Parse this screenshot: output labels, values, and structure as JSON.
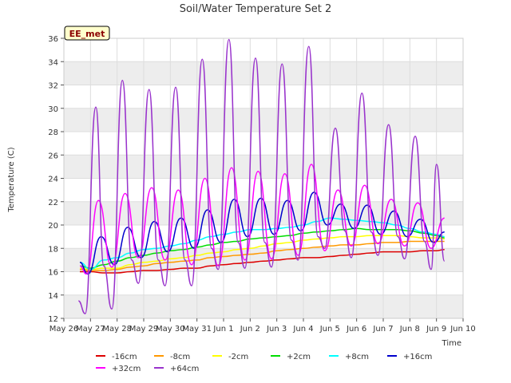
{
  "chart_data": {
    "type": "line",
    "title": "Soil/Water Temperature Set 2",
    "xlabel": "Time",
    "ylabel": "Temperature (C)",
    "site_label": "EE_met",
    "ylim": [
      12,
      36
    ],
    "xlim": [
      0,
      15
    ],
    "yticks": [
      12,
      14,
      16,
      18,
      20,
      22,
      24,
      26,
      28,
      30,
      32,
      34,
      36
    ],
    "xticks": [
      {
        "pos": 0,
        "label": "May 26"
      },
      {
        "pos": 1,
        "label": "May 27"
      },
      {
        "pos": 2,
        "label": "May 28"
      },
      {
        "pos": 3,
        "label": "May 29"
      },
      {
        "pos": 4,
        "label": "May 30"
      },
      {
        "pos": 5,
        "label": "May 31"
      },
      {
        "pos": 6,
        "label": "Jun 1"
      },
      {
        "pos": 7,
        "label": "Jun 2"
      },
      {
        "pos": 8,
        "label": "Jun 3"
      },
      {
        "pos": 9,
        "label": "Jun 4"
      },
      {
        "pos": 10,
        "label": "Jun 5"
      },
      {
        "pos": 11,
        "label": "Jun 6"
      },
      {
        "pos": 12,
        "label": "Jun 7"
      },
      {
        "pos": 13,
        "label": "Jun 8"
      },
      {
        "pos": 14,
        "label": "Jun 9"
      },
      {
        "pos": 15,
        "label": "Jun 10"
      }
    ],
    "grid": true,
    "legend_position": "bottom",
    "series": [
      {
        "name": "-16cm",
        "color": "#dd0000",
        "x": [
          0.6,
          1.0,
          1.5,
          2.0,
          2.5,
          3.0,
          3.5,
          4.0,
          4.5,
          5.0,
          5.5,
          6.0,
          6.5,
          7.0,
          7.5,
          8.0,
          8.5,
          9.0,
          9.5,
          10.0,
          10.5,
          11.0,
          11.5,
          12.0,
          12.5,
          13.0,
          13.5,
          14.0,
          14.3
        ],
        "y": [
          16.0,
          16.0,
          15.9,
          15.9,
          16.0,
          16.1,
          16.1,
          16.2,
          16.3,
          16.3,
          16.5,
          16.6,
          16.7,
          16.8,
          16.9,
          17.0,
          17.1,
          17.2,
          17.2,
          17.3,
          17.4,
          17.5,
          17.6,
          17.7,
          17.7,
          17.7,
          17.8,
          17.8,
          17.9
        ]
      },
      {
        "name": "-8cm",
        "color": "#ff9900",
        "x": [
          0.6,
          1.0,
          1.5,
          2.0,
          2.5,
          3.0,
          3.5,
          4.0,
          4.5,
          5.0,
          5.5,
          6.0,
          6.5,
          7.0,
          7.5,
          8.0,
          8.5,
          9.0,
          9.5,
          10.0,
          10.5,
          11.0,
          11.5,
          12.0,
          12.5,
          13.0,
          13.5,
          14.0,
          14.3
        ],
        "y": [
          16.2,
          16.1,
          16.1,
          16.2,
          16.4,
          16.5,
          16.7,
          16.8,
          16.9,
          17.0,
          17.2,
          17.3,
          17.4,
          17.5,
          17.6,
          17.8,
          17.9,
          18.0,
          18.1,
          18.2,
          18.3,
          18.3,
          18.4,
          18.5,
          18.5,
          18.6,
          18.6,
          18.6,
          18.6
        ]
      },
      {
        "name": "-2cm",
        "color": "#ffff00",
        "x": [
          0.6,
          1.0,
          1.5,
          2.0,
          2.5,
          3.0,
          3.5,
          4.0,
          4.5,
          5.0,
          5.5,
          6.0,
          6.5,
          7.0,
          7.5,
          8.0,
          8.5,
          9.0,
          9.5,
          10.0,
          10.5,
          11.0,
          11.5,
          12.0,
          12.5,
          13.0,
          13.5,
          14.0,
          14.3
        ],
        "y": [
          16.3,
          16.2,
          16.3,
          16.3,
          16.6,
          16.8,
          16.9,
          17.1,
          17.2,
          17.4,
          17.6,
          17.7,
          17.9,
          18.0,
          18.2,
          18.4,
          18.5,
          18.7,
          18.8,
          18.9,
          19.0,
          19.0,
          19.1,
          19.1,
          19.1,
          19.0,
          18.9,
          18.9,
          18.8
        ]
      },
      {
        "name": "+2cm",
        "color": "#00dd00",
        "x": [
          0.6,
          1.0,
          1.5,
          2.0,
          2.5,
          3.0,
          3.5,
          4.0,
          4.5,
          5.0,
          5.5,
          6.0,
          6.5,
          7.0,
          7.5,
          8.0,
          8.5,
          9.0,
          9.5,
          10.0,
          10.5,
          11.0,
          11.5,
          12.0,
          12.5,
          13.0,
          13.5,
          14.0,
          14.3
        ],
        "y": [
          16.5,
          16.3,
          16.6,
          16.9,
          17.2,
          17.4,
          17.6,
          17.8,
          17.9,
          18.1,
          18.3,
          18.5,
          18.6,
          18.8,
          18.9,
          19.0,
          19.1,
          19.3,
          19.4,
          19.5,
          19.6,
          19.7,
          19.6,
          19.6,
          19.6,
          19.5,
          19.3,
          19.1,
          18.9
        ]
      },
      {
        "name": "+8cm",
        "color": "#00ffff",
        "x": [
          0.6,
          1.0,
          1.5,
          2.0,
          2.5,
          3.0,
          3.5,
          4.0,
          4.5,
          5.0,
          5.5,
          6.0,
          6.5,
          7.0,
          7.5,
          8.0,
          8.5,
          9.0,
          9.5,
          10.0,
          10.5,
          11.0,
          11.5,
          12.0,
          12.5,
          13.0,
          13.5,
          14.0,
          14.3
        ],
        "y": [
          16.8,
          16.2,
          17.0,
          17.2,
          17.6,
          17.9,
          18.0,
          18.2,
          18.4,
          18.7,
          19.0,
          19.2,
          19.4,
          19.6,
          19.6,
          19.7,
          19.8,
          20.0,
          20.3,
          20.6,
          20.5,
          20.4,
          20.3,
          20.2,
          20.0,
          19.7,
          19.4,
          19.2,
          19.0
        ]
      },
      {
        "name": "+16cm",
        "color": "#0000cc",
        "x": [
          0.6,
          0.9,
          1.4,
          1.9,
          2.4,
          2.9,
          3.4,
          3.9,
          4.4,
          4.9,
          5.4,
          5.9,
          6.4,
          6.9,
          7.4,
          7.9,
          8.4,
          8.9,
          9.4,
          9.9,
          10.4,
          10.9,
          11.4,
          11.9,
          12.4,
          12.9,
          13.4,
          13.9,
          14.3
        ],
        "y": [
          16.8,
          15.8,
          19.0,
          16.6,
          19.8,
          17.2,
          20.3,
          17.7,
          20.6,
          18.0,
          21.3,
          18.5,
          22.2,
          19.0,
          22.3,
          19.2,
          22.1,
          19.5,
          22.8,
          20.0,
          21.8,
          19.7,
          21.7,
          19.2,
          21.2,
          19.0,
          20.5,
          18.5,
          19.4
        ]
      },
      {
        "name": "+32cm",
        "color": "#ff00ff",
        "x": [
          0.6,
          0.85,
          1.3,
          1.8,
          2.3,
          2.8,
          3.3,
          3.8,
          4.3,
          4.8,
          5.3,
          5.8,
          6.3,
          6.8,
          7.3,
          7.8,
          8.3,
          8.8,
          9.3,
          9.8,
          10.3,
          10.8,
          11.3,
          11.8,
          12.3,
          12.8,
          13.3,
          13.8,
          14.3
        ],
        "y": [
          16.5,
          15.8,
          22.1,
          16.4,
          22.7,
          17.2,
          23.2,
          17.0,
          23.0,
          16.6,
          24.0,
          16.5,
          24.9,
          17.0,
          24.6,
          17.1,
          24.4,
          17.4,
          25.2,
          17.8,
          23.0,
          18.2,
          23.4,
          18.4,
          22.2,
          18.2,
          21.9,
          18.0,
          20.6
        ]
      },
      {
        "name": "+64cm",
        "color": "#9933cc",
        "x": [
          0.55,
          0.8,
          1.2,
          1.5,
          1.8,
          2.2,
          2.55,
          2.8,
          3.2,
          3.55,
          3.8,
          4.2,
          4.55,
          4.8,
          5.2,
          5.55,
          5.8,
          6.2,
          6.55,
          6.8,
          7.2,
          7.55,
          7.8,
          8.2,
          8.55,
          8.8,
          9.2,
          9.55,
          9.8,
          10.2,
          10.55,
          10.8,
          11.2,
          11.55,
          11.8,
          12.2,
          12.55,
          12.8,
          13.2,
          13.55,
          13.8,
          14.0,
          14.3
        ],
        "y": [
          13.5,
          12.4,
          30.1,
          16.5,
          12.8,
          32.4,
          17.0,
          15.0,
          31.6,
          17.0,
          14.8,
          31.8,
          17.0,
          14.8,
          34.2,
          18.0,
          16.2,
          35.9,
          18.5,
          16.3,
          34.3,
          18.5,
          16.4,
          33.8,
          18.7,
          17.0,
          35.3,
          19.0,
          18.0,
          28.3,
          19.5,
          17.2,
          31.3,
          19.4,
          17.4,
          28.6,
          19.0,
          17.1,
          27.6,
          18.6,
          16.2,
          25.2,
          16.9
        ]
      }
    ]
  }
}
